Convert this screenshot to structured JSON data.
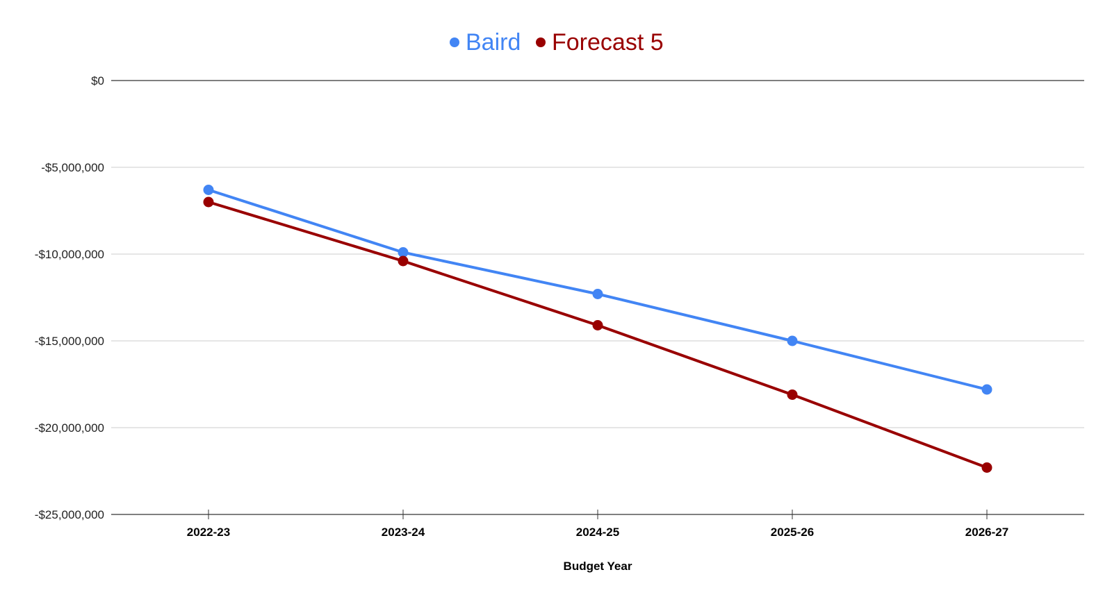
{
  "chart_data": {
    "type": "line",
    "xlabel": "Budget Year",
    "ylabel": "",
    "categories": [
      "2022-23",
      "2023-24",
      "2024-25",
      "2025-26",
      "2026-27"
    ],
    "y_ticks": [
      0,
      -5000000,
      -10000000,
      -15000000,
      -20000000,
      -25000000
    ],
    "y_tick_labels": [
      "$0",
      "-$5,000,000",
      "-$10,000,000",
      "-$15,000,000",
      "-$20,000,000",
      "-$25,000,000"
    ],
    "ylim": [
      -25000000,
      0
    ],
    "grid": true,
    "legend_position": "top-center",
    "series": [
      {
        "name": "Baird",
        "color": "#4285f4",
        "values": [
          -6300000,
          -9900000,
          -12300000,
          -15000000,
          -17800000
        ]
      },
      {
        "name": "Forecast 5",
        "color": "#990000",
        "values": [
          -7000000,
          -10400000,
          -14100000,
          -18100000,
          -22300000
        ]
      }
    ]
  }
}
